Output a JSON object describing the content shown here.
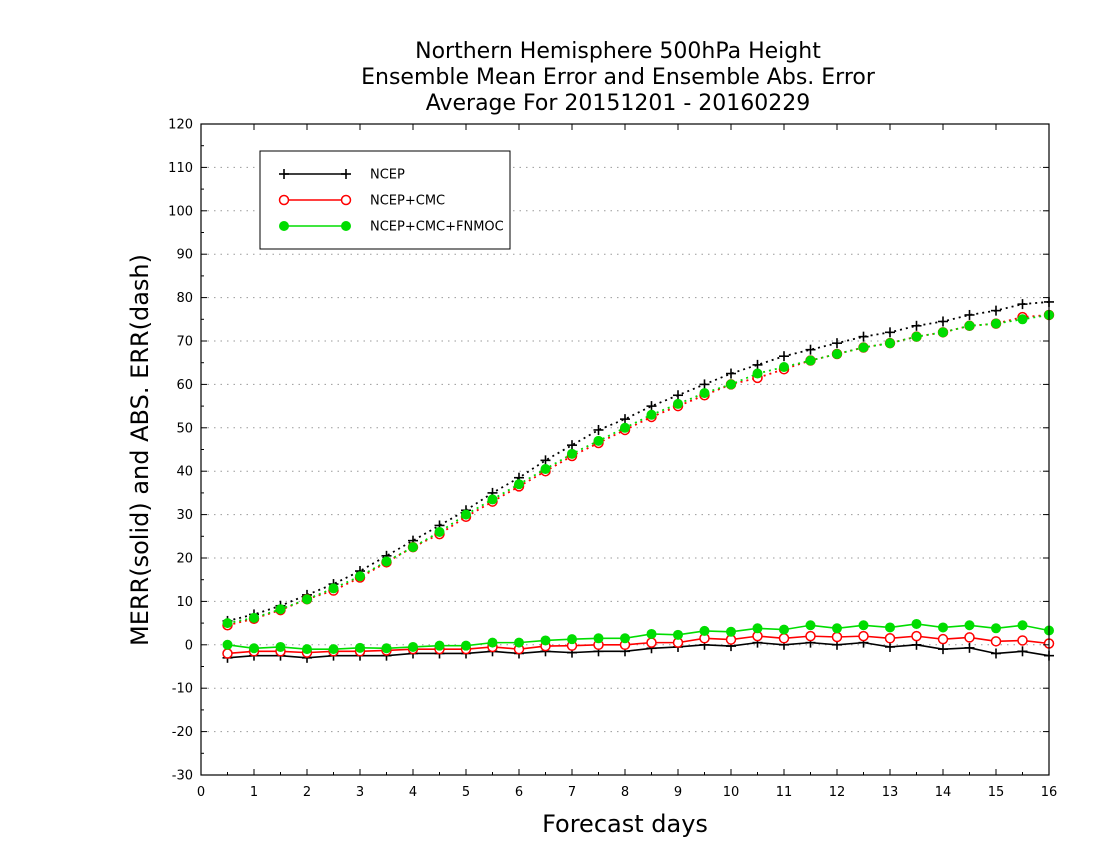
{
  "chart_data": {
    "type": "line",
    "title": [
      "Northern Hemisphere 500hPa Height",
      "Ensemble Mean Error and Ensemble Abs. Error",
      "Average For 20151201 - 20160229"
    ],
    "xlabel": "Forecast days",
    "ylabel": "MERR(solid) and ABS. ERR(dash)",
    "xlim": [
      0,
      16
    ],
    "ylim": [
      -30,
      120
    ],
    "xticks": [
      0,
      1,
      2,
      3,
      4,
      5,
      6,
      7,
      8,
      9,
      10,
      11,
      12,
      13,
      14,
      15,
      16
    ],
    "yticks": [
      -30,
      -20,
      -10,
      0,
      10,
      20,
      30,
      40,
      50,
      60,
      70,
      80,
      90,
      100,
      110,
      120
    ],
    "grid": "horizontal dotted",
    "legend": {
      "position": "top-left",
      "entries": [
        "NCEP",
        "NCEP+CMC",
        "NCEP+CMC+FNMOC"
      ]
    },
    "x": [
      0.5,
      1,
      1.5,
      2,
      2.5,
      3,
      3.5,
      4,
      4.5,
      5,
      5.5,
      6,
      6.5,
      7,
      7.5,
      8,
      8.5,
      9,
      9.5,
      10,
      10.5,
      11,
      11.5,
      12,
      12.5,
      13,
      13.5,
      14,
      14.5,
      15,
      15.5,
      16
    ],
    "series": [
      {
        "name": "NCEP",
        "metric": "MERR",
        "style": "solid",
        "marker": "plus",
        "color": "#000000",
        "values": [
          -3,
          -2.5,
          -2.5,
          -3,
          -2.5,
          -2.5,
          -2.5,
          -2,
          -2,
          -2,
          -1.5,
          -2,
          -1.5,
          -1.8,
          -1.5,
          -1.5,
          -0.8,
          -0.5,
          0,
          -0.3,
          0.5,
          0,
          0.5,
          0,
          0.5,
          -0.5,
          0,
          -1,
          -0.7,
          -2,
          -1.5,
          -2.5
        ]
      },
      {
        "name": "NCEP+CMC",
        "metric": "MERR",
        "style": "solid",
        "marker": "open-circle",
        "color": "#ff0000",
        "values": [
          -2,
          -1.5,
          -1.5,
          -1.8,
          -1.5,
          -1.5,
          -1.3,
          -1,
          -1,
          -1,
          -0.5,
          -1,
          -0.3,
          -0.2,
          0,
          0,
          0.5,
          0.5,
          1.5,
          1.2,
          2,
          1.5,
          2,
          1.8,
          2,
          1.5,
          2,
          1.3,
          1.7,
          0.8,
          1,
          0.3
        ]
      },
      {
        "name": "NCEP+CMC+FNMOC",
        "metric": "MERR",
        "style": "solid",
        "marker": "filled-circle",
        "color": "#00dd00",
        "values": [
          0,
          -0.8,
          -0.5,
          -1,
          -1,
          -0.7,
          -0.8,
          -0.5,
          -0.2,
          -0.2,
          0.5,
          0.5,
          1,
          1.3,
          1.5,
          1.5,
          2.5,
          2.3,
          3.2,
          3,
          3.8,
          3.5,
          4.5,
          3.8,
          4.5,
          4,
          4.8,
          4,
          4.5,
          3.8,
          4.5,
          3.3
        ]
      },
      {
        "name": "NCEP",
        "metric": "ABS. ERR",
        "style": "dash",
        "marker": "plus",
        "color": "#000000",
        "values": [
          5.5,
          7,
          9,
          11.5,
          14,
          17,
          20.5,
          24,
          27.5,
          31,
          35,
          38.5,
          42.5,
          46,
          49.5,
          52,
          55,
          57.5,
          60,
          62.5,
          64.5,
          66.5,
          68,
          69.5,
          71,
          72,
          73.5,
          74.5,
          76,
          77,
          78.5,
          79
        ]
      },
      {
        "name": "NCEP+CMC",
        "metric": "ABS. ERR",
        "style": "dash",
        "marker": "open-circle",
        "color": "#ff0000",
        "values": [
          4.5,
          6,
          8,
          10.5,
          12.5,
          15.5,
          19,
          22.5,
          25.5,
          29.5,
          33,
          36.5,
          40,
          43.5,
          46.5,
          49.5,
          52.5,
          55,
          57.5,
          60,
          61.5,
          63.5,
          65.5,
          67,
          68.5,
          69.5,
          71,
          72,
          73.5,
          74,
          75.5,
          76
        ]
      },
      {
        "name": "NCEP+CMC+FNMOC",
        "metric": "ABS. ERR",
        "style": "dash",
        "marker": "filled-circle",
        "color": "#00dd00",
        "values": [
          5,
          6.2,
          8.2,
          10.5,
          13,
          15.8,
          19.2,
          22.5,
          26,
          30,
          33.5,
          37,
          40.5,
          44,
          47,
          50,
          53,
          55.5,
          58,
          60,
          62.5,
          64,
          65.5,
          67,
          68.5,
          69.5,
          71,
          72,
          73.5,
          74,
          75,
          76
        ]
      }
    ]
  }
}
